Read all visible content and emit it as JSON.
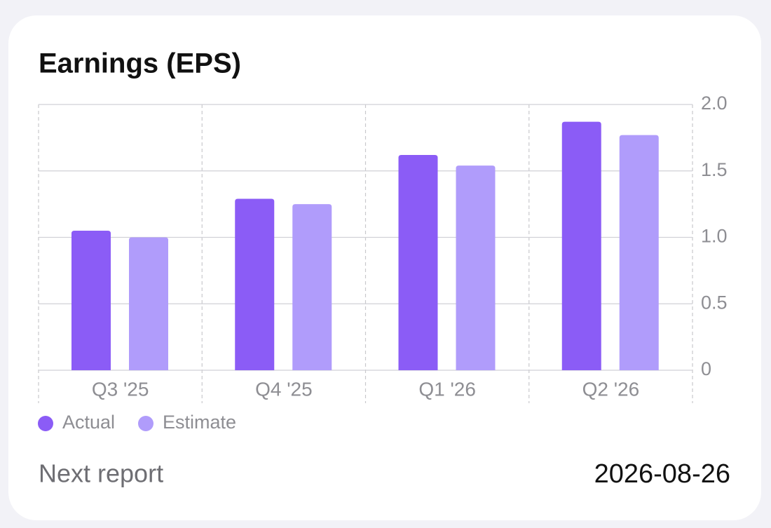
{
  "chart_data": {
    "type": "bar",
    "title": "Earnings (EPS)",
    "categories": [
      "Q3 '25",
      "Q4 '25",
      "Q1 '26",
      "Q2 '26"
    ],
    "series": [
      {
        "name": "Actual",
        "color": "#8b5cf6",
        "values": [
          1.05,
          1.29,
          1.62,
          1.87
        ]
      },
      {
        "name": "Estimate",
        "color": "#b09cfb",
        "values": [
          1.0,
          1.25,
          1.54,
          1.77
        ]
      }
    ],
    "ylim": [
      0,
      2
    ],
    "yticks": [
      0,
      0.5,
      {
        "value": 1,
        "label": "1.0"
      },
      1.5,
      {
        "value": 2,
        "label": "2.0"
      }
    ],
    "grid": true
  },
  "footer": {
    "label": "Next report",
    "value": "2026-08-26"
  }
}
